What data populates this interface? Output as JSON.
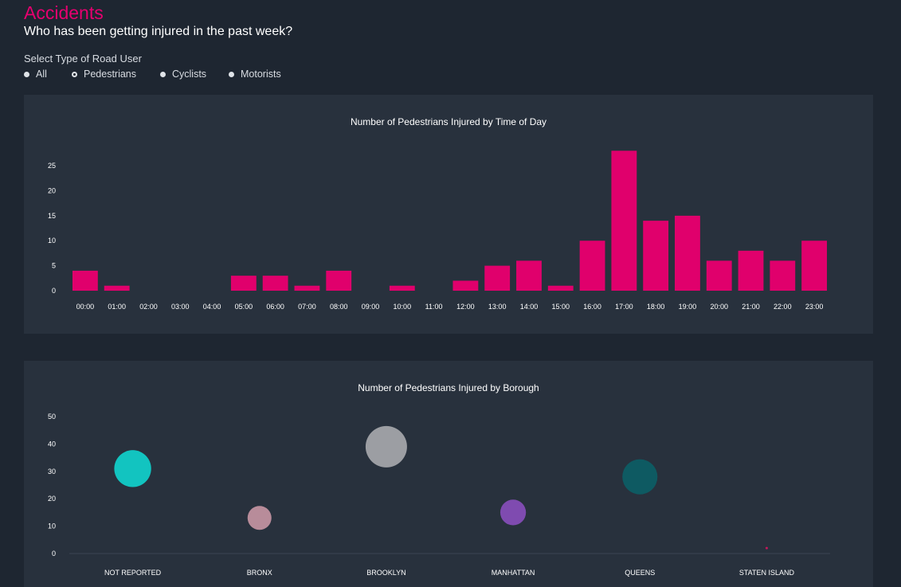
{
  "header": {
    "title": "Accidents",
    "subtitle": "Who has been getting injured in the past week?"
  },
  "filter": {
    "label": "Select Type of Road User",
    "options": [
      "All",
      "Pedestrians",
      "Cyclists",
      "Motorists"
    ],
    "selected": "Pedestrians"
  },
  "colors": {
    "bar": "#e0006c",
    "axis_text": "#ffffff"
  },
  "chart_data": [
    {
      "type": "bar",
      "title": "Number of Pedestrians Injured by Time of Day",
      "categories": [
        "00:00",
        "01:00",
        "02:00",
        "03:00",
        "04:00",
        "05:00",
        "06:00",
        "07:00",
        "08:00",
        "09:00",
        "10:00",
        "11:00",
        "12:00",
        "13:00",
        "14:00",
        "15:00",
        "16:00",
        "17:00",
        "18:00",
        "19:00",
        "20:00",
        "21:00",
        "22:00",
        "23:00"
      ],
      "values": [
        4,
        1,
        0,
        0,
        0,
        3,
        3,
        1,
        4,
        0,
        1,
        0,
        2,
        5,
        6,
        1,
        10,
        28,
        14,
        15,
        6,
        8,
        6,
        10
      ],
      "yticks": [
        0,
        5,
        10,
        15,
        20,
        25
      ],
      "ylim": [
        0,
        29
      ],
      "grid": false,
      "color": "#e0006c"
    },
    {
      "type": "scatter",
      "title": "Number of Pedestrians Injured by Borough",
      "categories": [
        "NOT REPORTED",
        "BRONX",
        "BROOKLYN",
        "MANHATTAN",
        "QUEENS",
        "STATEN ISLAND"
      ],
      "values": [
        31,
        13,
        39,
        15,
        28,
        2
      ],
      "colors": [
        "#12c4c0",
        "#b88c9a",
        "#9c9ea3",
        "#7f4bb0",
        "#0e5a62",
        "#c2185b"
      ],
      "yticks": [
        0,
        10,
        20,
        30,
        40,
        50
      ],
      "ylim": [
        0,
        50
      ],
      "grid": false
    }
  ]
}
